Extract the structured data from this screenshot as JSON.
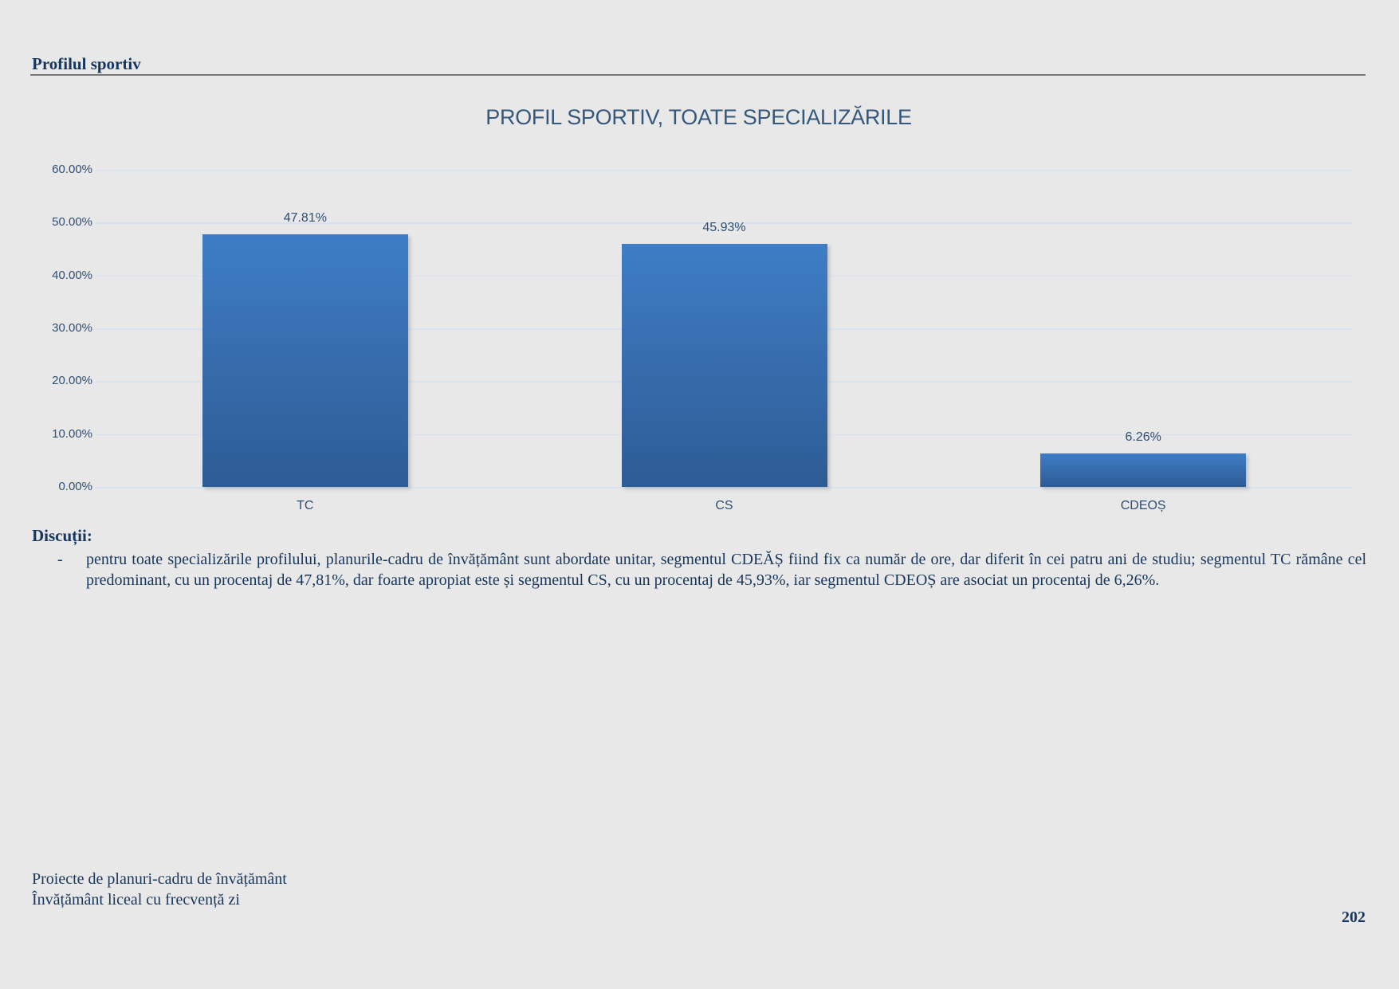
{
  "page": {
    "background": "#E9E8E8",
    "text_color": "#17365D"
  },
  "header": {
    "title": "Profilul sportiv"
  },
  "chart_data": {
    "type": "bar",
    "title": "PROFIL SPORTIV, TOATE SPECIALIZĂRILE",
    "categories": [
      "TC",
      "CS",
      "CDEOȘ"
    ],
    "values": [
      47.81,
      45.93,
      6.26
    ],
    "data_labels": [
      "47.81%",
      "45.93%",
      "6.26%"
    ],
    "xlabel": "",
    "ylabel": "",
    "ylim": [
      0,
      60
    ],
    "y_ticks": [
      "0.00%",
      "10.00%",
      "20.00%",
      "30.00%",
      "40.00%",
      "50.00%",
      "60.00%"
    ],
    "grid": true,
    "legend": false,
    "colors": {
      "bar_gradient_top": "#3F7DC6",
      "bar_gradient_bottom": "#2E5C94",
      "gridline": "#D9E3F0",
      "axis_text": "#2E4E74",
      "title_text": "#35587E"
    }
  },
  "discussion": {
    "heading": "Discuții:",
    "bullet_marker": "-",
    "text": "pentru toate specializările profilului, planurile-cadru de învățământ sunt abordate unitar, segmentul CDEĂȘ fiind fix ca număr de ore, dar diferit în cei patru ani de studiu; segmentul TC rămâne cel predominant, cu un procentaj de 47,81%, dar foarte apropiat este și segmentul CS, cu un procentaj de 45,93%, iar segmentul CDEOȘ are asociat un procentaj de 6,26%."
  },
  "footer": {
    "line1": "Proiecte de planuri-cadru de învățământ",
    "line2": "Învățământ liceal cu frecvență zi",
    "page_number": "202"
  }
}
